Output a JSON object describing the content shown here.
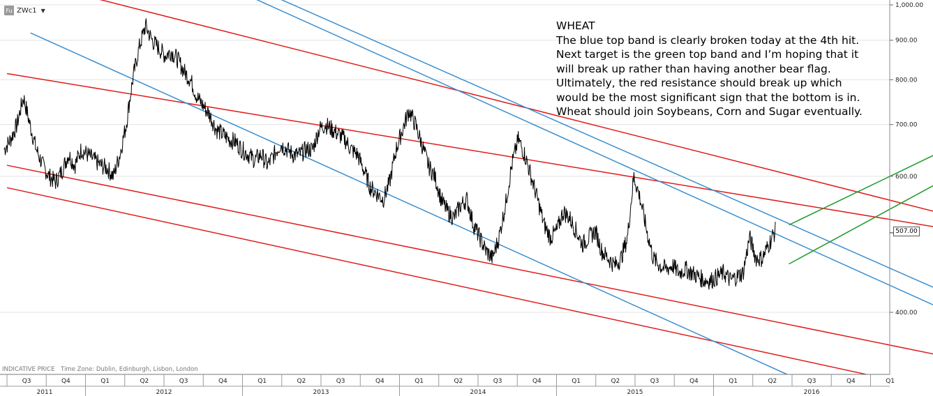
{
  "toolbar": {
    "icon_label": "Fu",
    "symbol": "ZWc1",
    "dropdown_glyph": "▼"
  },
  "annotation": {
    "title": "WHEAT",
    "body": "The blue top band is clearly broken today at the 4th hit. Next target is the green top band and I’m hoping that it will break up rather than having another bear flag. Ultimately, the red resistance should break up which would be the most significant sign that the bottom is in. Wheat should join Soybeans, Corn and Sugar eventually."
  },
  "footer": {
    "indicative": "INDICATIVE PRICE",
    "timezone": "Time Zone: Dublin, Edinburgh, Lisbon, London"
  },
  "last_price_label": "507.00",
  "colors": {
    "price": "#000000",
    "red": "#e01b1b",
    "blue": "#3a8fd0",
    "green": "#1f9a2a",
    "grid": "#e3e3e3"
  },
  "chart_data": {
    "type": "line",
    "y_scale": "log",
    "ylim": [
      340,
      1000
    ],
    "y_ticks": [
      {
        "value": 1000,
        "label": "1,000.00"
      },
      {
        "value": 900,
        "label": "900.00"
      },
      {
        "value": 800,
        "label": "800.00"
      },
      {
        "value": 700,
        "label": "700.00"
      },
      {
        "value": 600,
        "label": "600.00"
      },
      {
        "value": 400,
        "label": "400.00"
      }
    ],
    "last_price": 507,
    "x_quarters": [
      "Q3",
      "Q4",
      "Q1",
      "Q2",
      "Q3",
      "Q4",
      "Q1",
      "Q2",
      "Q3",
      "Q4",
      "Q1",
      "Q2",
      "Q3",
      "Q4",
      "Q1",
      "Q2",
      "Q3",
      "Q4",
      "Q1",
      "Q2",
      "Q3",
      "Q4",
      "Q1"
    ],
    "x_years": [
      "2011",
      "2012",
      "2013",
      "2014",
      "2015",
      "2016"
    ],
    "x_year_quarter_index": [
      0,
      2,
      6,
      10,
      14,
      18
    ],
    "price_series": {
      "name": "",
      "values": [
        650,
        670,
        700,
        760,
        700,
        650,
        620,
        600,
        590,
        610,
        640,
        620,
        650,
        640,
        630,
        620,
        615,
        600,
        640,
        700,
        800,
        880,
        940,
        900,
        880,
        860,
        870,
        850,
        820,
        800,
        760,
        740,
        720,
        690,
        680,
        670,
        665,
        650,
        640,
        630,
        640,
        620,
        640,
        660,
        650,
        640,
        640,
        650,
        650,
        690,
        700,
        690,
        680,
        670,
        650,
        640,
        610,
        580,
        570,
        560,
        590,
        650,
        690,
        730,
        700,
        660,
        620,
        600,
        560,
        540,
        530,
        550,
        560,
        520,
        500,
        480,
        470,
        500,
        550,
        620,
        670,
        640,
        600,
        560,
        520,
        500,
        510,
        540,
        530,
        510,
        490,
        500,
        510,
        480,
        470,
        460,
        470,
        500,
        600,
        560,
        510,
        470,
        460,
        455,
        460,
        450,
        455,
        450,
        445,
        440,
        440,
        445,
        450,
        440,
        445,
        450,
        500,
        470,
        470,
        490,
        510
      ]
    },
    "lines": [
      {
        "color": "red",
        "p1": [
          0.0,
          815
        ],
        "p2": [
          5.91,
          516
        ]
      },
      {
        "color": "red",
        "p1": [
          0.0,
          620
        ],
        "p2": [
          5.91,
          353
        ]
      },
      {
        "color": "red",
        "p1": [
          0.0,
          580
        ],
        "p2": [
          5.91,
          318
        ]
      },
      {
        "color": "red",
        "p1": [
          0.0,
          1090
        ],
        "p2": [
          5.91,
          540
        ]
      },
      {
        "color": "blue",
        "p1": [
          0.15,
          920
        ],
        "p2": [
          5.3,
          310
        ]
      },
      {
        "color": "blue",
        "p1": [
          1.3,
          1080
        ],
        "p2": [
          5.91,
          408
        ]
      },
      {
        "color": "blue",
        "p1": [
          1.45,
          1080
        ],
        "p2": [
          5.91,
          430
        ]
      },
      {
        "color": "green",
        "p1": [
          4.98,
          462
        ],
        "p2": [
          5.91,
          585
        ]
      },
      {
        "color": "green",
        "p1": [
          4.98,
          519
        ],
        "p2": [
          5.91,
          640
        ]
      }
    ]
  }
}
